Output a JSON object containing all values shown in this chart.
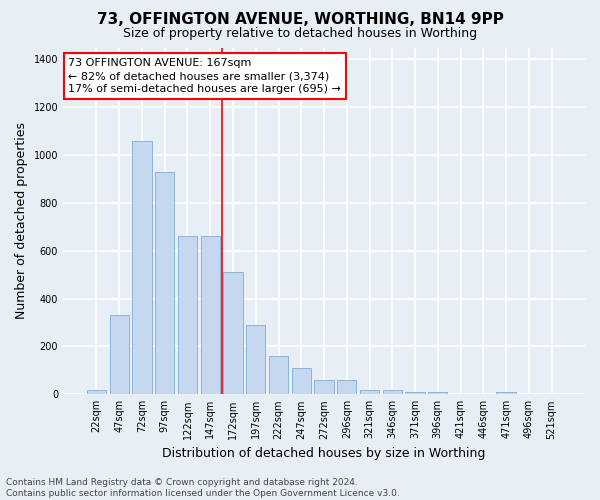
{
  "title": "73, OFFINGTON AVENUE, WORTHING, BN14 9PP",
  "subtitle": "Size of property relative to detached houses in Worthing",
  "xlabel": "Distribution of detached houses by size in Worthing",
  "ylabel": "Number of detached properties",
  "categories": [
    "22sqm",
    "47sqm",
    "72sqm",
    "97sqm",
    "122sqm",
    "147sqm",
    "172sqm",
    "197sqm",
    "222sqm",
    "247sqm",
    "272sqm",
    "296sqm",
    "321sqm",
    "346sqm",
    "371sqm",
    "396sqm",
    "421sqm",
    "446sqm",
    "471sqm",
    "496sqm",
    "521sqm"
  ],
  "values": [
    18,
    330,
    1060,
    930,
    660,
    660,
    510,
    290,
    160,
    110,
    60,
    60,
    18,
    18,
    8,
    8,
    0,
    0,
    8,
    0,
    0
  ],
  "bar_color": "#c5d8ef",
  "bar_edge_color": "#7aaed6",
  "vline_color": "red",
  "annotation_line1": "73 OFFINGTON AVENUE: 167sqm",
  "annotation_line2": "← 82% of detached houses are smaller (3,374)",
  "annotation_line3": "17% of semi-detached houses are larger (695) →",
  "annotation_box_color": "white",
  "annotation_box_edge_color": "red",
  "footnote": "Contains HM Land Registry data © Crown copyright and database right 2024.\nContains public sector information licensed under the Open Government Licence v3.0.",
  "ylim": [
    0,
    1450
  ],
  "yticks": [
    0,
    200,
    400,
    600,
    800,
    1000,
    1200,
    1400
  ],
  "background_color": "#e8eef5",
  "grid_color": "white",
  "title_fontsize": 11,
  "subtitle_fontsize": 9,
  "axis_label_fontsize": 9,
  "tick_fontsize": 7,
  "annotation_fontsize": 8,
  "footnote_fontsize": 6.5,
  "vline_x_index": 5.5
}
